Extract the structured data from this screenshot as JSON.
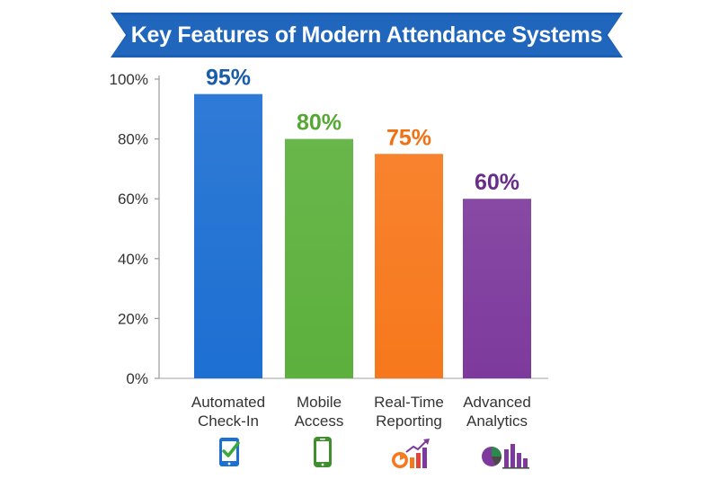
{
  "chart_data": {
    "type": "bar",
    "title": "Key Features of Modern Attendance Systems",
    "categories": [
      "Automated Check-In",
      "Mobile Access",
      "Real-Time Reporting",
      "Advanced Analytics"
    ],
    "category_lines": [
      [
        "Automated",
        "Check-In"
      ],
      [
        "Mobile",
        "Access"
      ],
      [
        "Real-Time",
        "Reporting"
      ],
      [
        "Advanced",
        "Analytics"
      ]
    ],
    "values": [
      95,
      80,
      75,
      60
    ],
    "value_labels": [
      "95%",
      "80%",
      "75%",
      "60%"
    ],
    "yticks": [
      "0%",
      "20%",
      "40%",
      "60%",
      "80%",
      "100%"
    ],
    "ylim": [
      0,
      100
    ],
    "colors": [
      "#1d6fd2",
      "#5cb03c",
      "#f7781c",
      "#7d3a9c"
    ],
    "label_colors": [
      "#1a5ca8",
      "#55a834",
      "#f26f12",
      "#6a2c8a"
    ],
    "banner_color": "#1a5fb4",
    "grid": false
  },
  "icons": [
    "tablet-check-icon",
    "smartphone-icon",
    "growth-chart-icon",
    "analytics-icon"
  ]
}
